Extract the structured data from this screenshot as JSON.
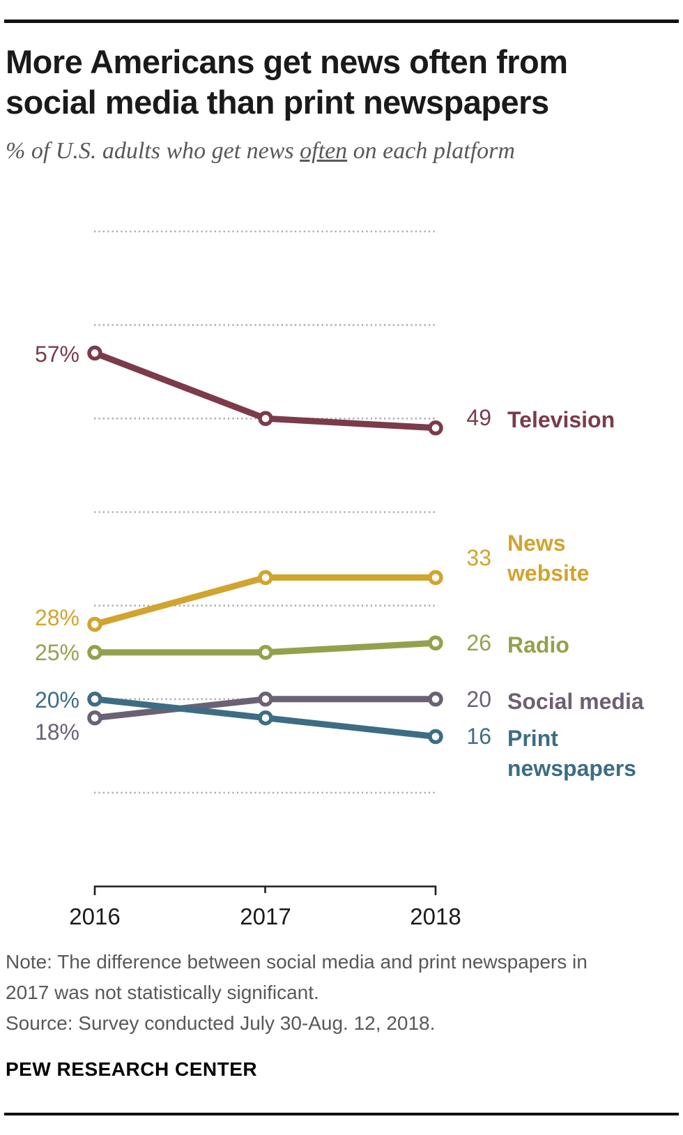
{
  "header": {
    "title_line1": "More Americans get news often from",
    "title_line2": "social media than print newspapers",
    "subtitle_prefix": "% of U.S. adults who get news ",
    "subtitle_emphasis": "often",
    "subtitle_suffix": " on each platform"
  },
  "chart_data": {
    "type": "line",
    "title": "More Americans get news often from social media than print newspapers",
    "subtitle": "% of U.S. adults who get news often on each platform",
    "categories": [
      "2016",
      "2017",
      "2018"
    ],
    "ylabel": "% of U.S. adults",
    "ylim": [
      10,
      70
    ],
    "gridlines_y": [
      10,
      20,
      30,
      40,
      50,
      60,
      70
    ],
    "grid_style": "dotted-horizontal",
    "grid_color": "#aaaaaa",
    "axis_color": "#1f1f1f",
    "legend_position": "right-edge-labels",
    "series": [
      {
        "name": "Television",
        "values": [
          57,
          50,
          49
        ],
        "color": "#7b3b49",
        "first_point_label": "57%",
        "last_point_label": "49"
      },
      {
        "name": "News website",
        "name_lines": [
          "News",
          "website"
        ],
        "values": [
          28,
          33,
          33
        ],
        "color": "#d1a42f",
        "first_point_label": "28%",
        "last_point_label": "33"
      },
      {
        "name": "Radio",
        "values": [
          25,
          25,
          26
        ],
        "color": "#94a14c",
        "first_point_label": "25%",
        "last_point_label": "26"
      },
      {
        "name": "Social media",
        "values": [
          18,
          20,
          20
        ],
        "color": "#6b6074",
        "first_point_label": "18%",
        "last_point_label": "20"
      },
      {
        "name": "Print newspapers",
        "name_lines": [
          "Print",
          "newspapers"
        ],
        "values": [
          20,
          18,
          16
        ],
        "color": "#3d6d84",
        "first_point_label": "20%",
        "last_point_label": "16"
      }
    ]
  },
  "footer": {
    "note_line1": "Note: The difference between social media and print newspapers in",
    "note_line2": "2017 was not statistically significant.",
    "source": "Source: Survey conducted July 30-Aug. 12, 2018.",
    "brand": "PEW RESEARCH CENTER"
  }
}
